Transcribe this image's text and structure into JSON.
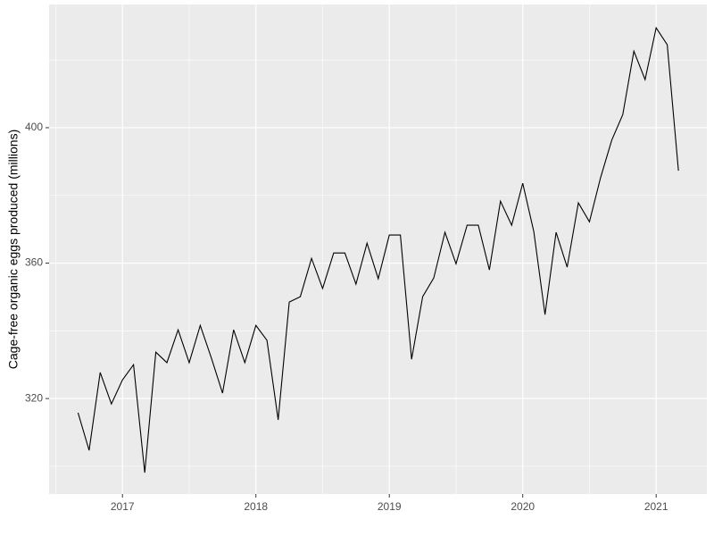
{
  "chart_data": {
    "type": "line",
    "y_label": "Cage-free organic eggs produced (millions)",
    "x": [
      2016.667,
      2016.75,
      2016.833,
      2016.917,
      2017,
      2017.083,
      2017.167,
      2017.25,
      2017.333,
      2017.417,
      2017.5,
      2017.583,
      2017.667,
      2017.75,
      2017.833,
      2017.917,
      2018,
      2018.083,
      2018.167,
      2018.25,
      2018.333,
      2018.417,
      2018.5,
      2018.583,
      2018.667,
      2018.75,
      2018.833,
      2018.917,
      2019,
      2019.083,
      2019.167,
      2019.25,
      2019.333,
      2019.417,
      2019.5,
      2019.583,
      2019.667,
      2019.75,
      2019.833,
      2019.917,
      2020,
      2020.083,
      2020.167,
      2020.25,
      2020.333,
      2020.417,
      2020.5,
      2020.583,
      2020.667,
      2020.75,
      2020.833,
      2020.917,
      2021,
      2021.083,
      2021.167
    ],
    "series": [
      {
        "color": "#000000",
        "values": [
          315.8,
          304.7,
          327.7,
          318.4,
          325.5,
          330.0,
          298.1,
          333.7,
          330.6,
          340.3,
          330.6,
          341.6,
          331.9,
          321.6,
          340.3,
          330.6,
          341.6,
          337.2,
          313.7,
          348.5,
          350.1,
          361.4,
          352.5,
          363.0,
          363.0,
          353.8,
          365.9,
          355.4,
          368.3,
          368.3,
          331.6,
          350.1,
          355.6,
          369.1,
          359.8,
          371.2,
          371.2,
          358.0,
          378.3,
          371.2,
          383.6,
          369.3,
          344.8,
          369.1,
          358.8,
          377.8,
          372.2,
          385.2,
          396.3,
          403.9,
          422.6,
          414.2,
          429.5,
          424.5,
          387.3
        ]
      }
    ],
    "xlim": [
      2016.45,
      2021.38
    ],
    "xticks": [
      2017,
      2018,
      2019,
      2020,
      2021
    ],
    "x_minor_ticks": [
      2016.5,
      2017.5,
      2018.5,
      2019.5,
      2020.5
    ],
    "ylim": [
      291.8,
      436.4
    ],
    "yticks": [
      320,
      360,
      400
    ],
    "y_minor_ticks": [
      300,
      340,
      380,
      420
    ],
    "grid": true,
    "panel_color": "#ebebeb"
  }
}
